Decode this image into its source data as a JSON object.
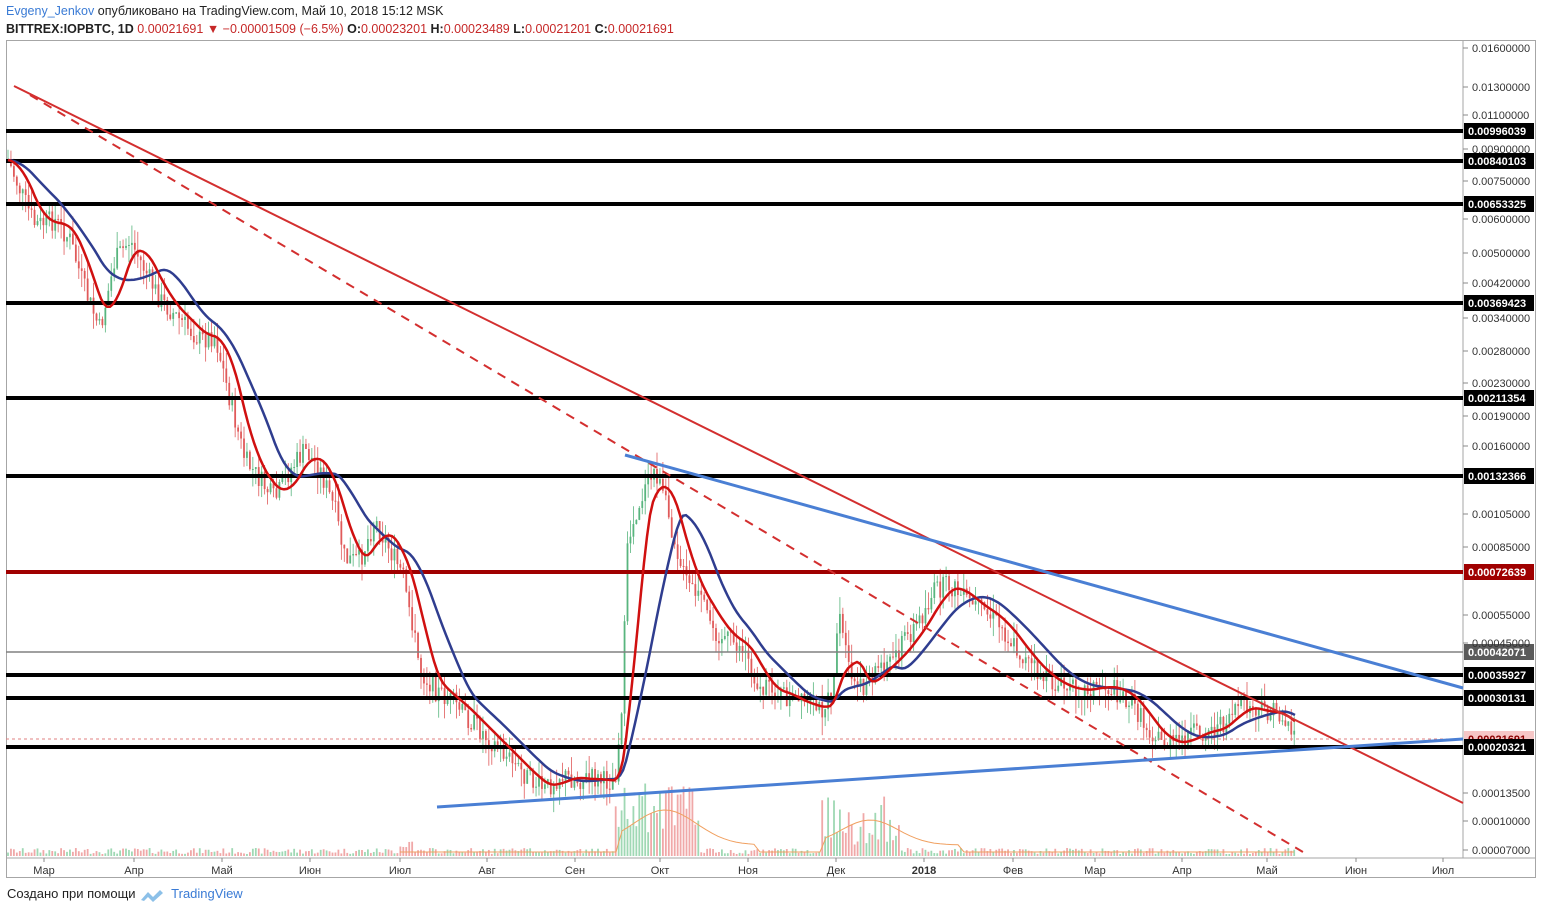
{
  "header": {
    "author": "Evgeny_Jenkov",
    "published_text": "опубликовано на TradingView.com, Май 10, 2018 15:12 MSK"
  },
  "ohlc": {
    "symbol": "BITTREX:IOPBTC, 1D",
    "last": "0.00021691",
    "change": "−0.00001509 (−6.5%)",
    "o_label": "O:",
    "o": "0.00023201",
    "h_label": "H:",
    "h": "0.00023489",
    "l_label": "L:",
    "l": "0.00021201",
    "c_label": "C:",
    "c": "0.00021691"
  },
  "footer": {
    "created_with": "Создано при помощи",
    "brand": "TradingView"
  },
  "chart_data": {
    "type": "candlestick",
    "scale": "log",
    "x_labels": [
      "Мар",
      "Апр",
      "Май",
      "Июн",
      "Июл",
      "Авг",
      "Сен",
      "Окт",
      "Ноя",
      "Дек",
      "2018",
      "Фев",
      "Мар",
      "Апр",
      "Май",
      "Июн",
      "Июл"
    ],
    "y_ticks": [
      "0.01600000",
      "0.01300000",
      "0.01100000",
      "0.00900000",
      "0.00750000",
      "0.00600000",
      "0.00500000",
      "0.00420000",
      "0.00340000",
      "0.00280000",
      "0.00230000",
      "0.00190000",
      "0.00160000",
      "0.00105000",
      "0.00085000",
      "0.00055000",
      "0.00045000",
      "0.00013500",
      "0.00010000",
      "0.00007000"
    ],
    "horizontal_levels": [
      {
        "label": "0.00996039",
        "color": "#000000"
      },
      {
        "label": "0.00840103",
        "color": "#000000"
      },
      {
        "label": "0.00653325",
        "color": "#000000"
      },
      {
        "label": "0.00369423",
        "color": "#000000"
      },
      {
        "label": "0.00211354",
        "color": "#000000"
      },
      {
        "label": "0.00132366",
        "color": "#000000"
      },
      {
        "label": "0.00072639",
        "color": "#a00000"
      },
      {
        "label": "0.00042071",
        "color": "#808080"
      },
      {
        "label": "0.00035927",
        "color": "#000000"
      },
      {
        "label": "0.00030131",
        "color": "#000000"
      },
      {
        "label": "0.00021691",
        "color": "#e08080"
      },
      {
        "label": "0.00020321",
        "color": "#000000"
      }
    ],
    "moving_averages": [
      {
        "color": "#d01010"
      },
      {
        "color": "#2f3d8f"
      }
    ],
    "trendlines": [
      {
        "color": "#d32f2f",
        "style": "solid"
      },
      {
        "color": "#d32f2f",
        "style": "dashed"
      },
      {
        "color": "#4a7fd4",
        "style": "solid"
      },
      {
        "color": "#4a7fd4",
        "style": "solid"
      }
    ]
  }
}
